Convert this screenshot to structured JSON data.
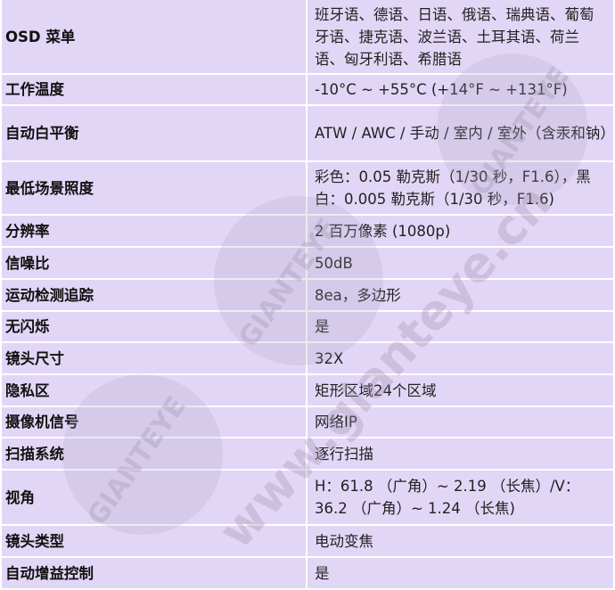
{
  "table": {
    "rows": [
      [
        "OSD 菜单",
        "班牙语、德语、日语、俄语、瑞典语、葡萄牙语、捷克语、波兰语、土耳其语、荷兰语、匈牙利语、希腊语"
      ],
      [
        "工作温度",
        "-10°C ~ +55°C (+14°F ~ +131°F)"
      ],
      [
        "自动白平衡",
        "ATW / AWC / 手动 / 室内 / 室外（含汞和钠）"
      ],
      [
        "最低场景照度",
        "彩色：0.05 勒克斯（1/30 秒，F1.6），黑白：0.005 勒克斯（1/30 秒，F1.6)"
      ],
      [
        "分辨率",
        "2 百万像素 (1080p)"
      ],
      [
        "信噪比",
        "50dB"
      ],
      [
        "运动检测追踪",
        "8ea，多边形"
      ],
      [
        "无闪烁",
        "是"
      ],
      [
        "镜头尺寸",
        "32X"
      ],
      [
        "隐私区",
        "矩形区域24个区域"
      ],
      [
        "摄像机信号",
        "网络IP"
      ],
      [
        "扫描系统",
        "逐行扫描"
      ],
      [
        "视角",
        "H：61.8 （广角）~ 2.19 （长焦）/V：36.2 （广角）~ 1.24 （长焦)"
      ],
      [
        "镜头类型",
        "电动变焦"
      ],
      [
        "自动增益控制",
        "是"
      ]
    ]
  },
  "watermark": {
    "logo": [
      "GIANTEYE",
      "GIANTEYE",
      "GIANTEYE"
    ],
    "url": "www.gianteye.cn"
  }
}
